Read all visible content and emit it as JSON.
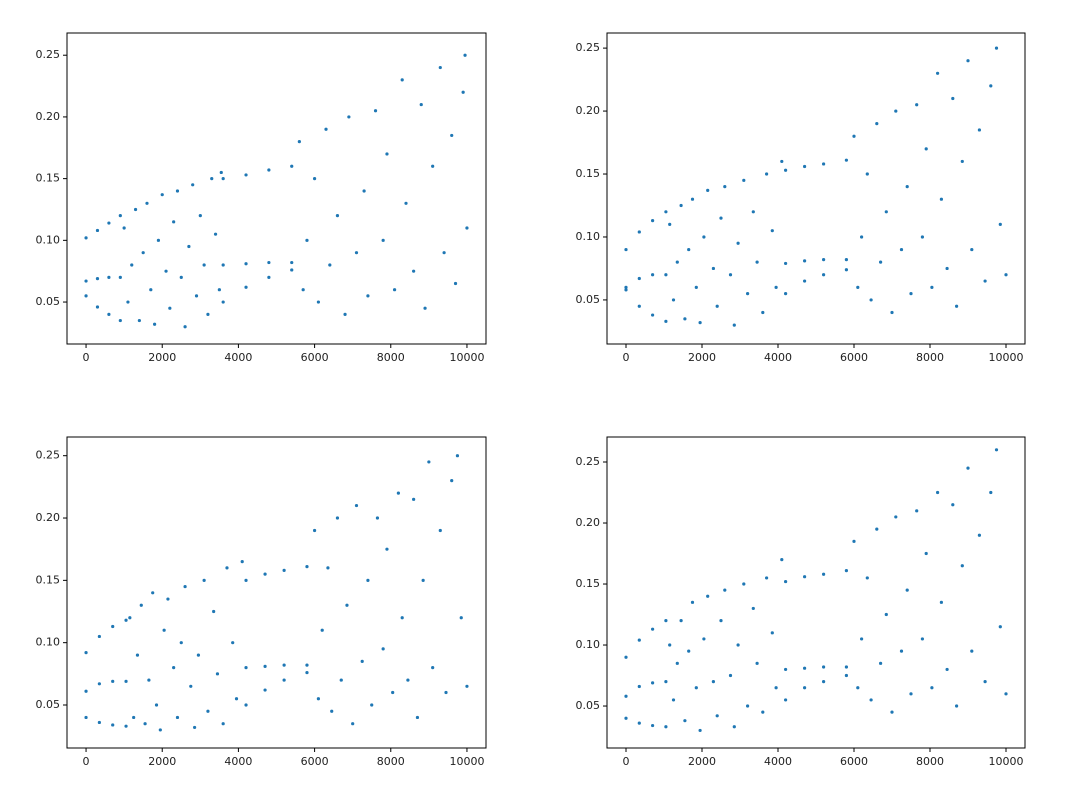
{
  "chart_data": [
    {
      "type": "scatter",
      "color": "#1f77b4",
      "x": [
        0,
        300,
        600,
        900,
        0,
        300,
        600,
        900,
        0,
        300,
        600,
        900,
        1000,
        1100,
        1200,
        1300,
        1400,
        1500,
        1600,
        1700,
        1800,
        1900,
        2000,
        2100,
        2200,
        2300,
        2400,
        2500,
        2600,
        2700,
        2800,
        2900,
        3000,
        3100,
        3200,
        3300,
        3400,
        3500,
        3550,
        3600,
        4200,
        4800,
        5400,
        3600,
        4200,
        4800,
        5400,
        3600,
        4200,
        4800,
        5400,
        5600,
        5700,
        5800,
        6000,
        6100,
        6300,
        6400,
        6600,
        6800,
        6900,
        7100,
        7300,
        7400,
        7600,
        7800,
        7900,
        8100,
        8300,
        8400,
        8600,
        8800,
        8900,
        9100,
        9300,
        9400,
        9600,
        9700,
        9900,
        9950,
        10000
      ],
      "values": [
        0.102,
        0.108,
        0.114,
        0.12,
        0.067,
        0.069,
        0.07,
        0.07,
        0.055,
        0.046,
        0.04,
        0.035,
        0.11,
        0.05,
        0.08,
        0.125,
        0.035,
        0.09,
        0.13,
        0.06,
        0.032,
        0.1,
        0.137,
        0.075,
        0.045,
        0.115,
        0.14,
        0.07,
        0.03,
        0.095,
        0.145,
        0.055,
        0.12,
        0.08,
        0.04,
        0.15,
        0.105,
        0.06,
        0.155,
        0.15,
        0.153,
        0.157,
        0.16,
        0.08,
        0.081,
        0.082,
        0.082,
        0.05,
        0.062,
        0.07,
        0.076,
        0.18,
        0.06,
        0.1,
        0.15,
        0.05,
        0.19,
        0.08,
        0.12,
        0.04,
        0.2,
        0.09,
        0.14,
        0.055,
        0.205,
        0.1,
        0.17,
        0.06,
        0.23,
        0.13,
        0.075,
        0.21,
        0.045,
        0.16,
        0.24,
        0.09,
        0.185,
        0.065,
        0.22,
        0.25,
        0.11
      ],
      "xlim": [
        -500,
        10500
      ],
      "ylim": [
        0.016,
        0.268
      ],
      "xticks": [
        0,
        2000,
        4000,
        6000,
        8000,
        10000
      ],
      "yticks": [
        0.05,
        {
          "value": 0.1,
          "label": "0.10"
        },
        0.15,
        {
          "value": 0.2,
          "label": "0.20"
        },
        0.25
      ]
    },
    {
      "type": "scatter",
      "color": "#1f77b4",
      "x": [
        0,
        350,
        700,
        1050,
        0,
        350,
        700,
        1050,
        0,
        350,
        700,
        1050,
        1150,
        1250,
        1350,
        1450,
        1550,
        1650,
        1750,
        1850,
        1950,
        2050,
        2150,
        2300,
        2400,
        2500,
        2600,
        2750,
        2850,
        2950,
        3100,
        3200,
        3350,
        3450,
        3600,
        3700,
        3850,
        3950,
        4100,
        4200,
        4700,
        5200,
        5800,
        4200,
        4700,
        5200,
        5800,
        4200,
        4700,
        5200,
        5800,
        6000,
        6100,
        6200,
        6350,
        6450,
        6600,
        6700,
        6850,
        7000,
        7100,
        7250,
        7400,
        7500,
        7650,
        7800,
        7900,
        8050,
        8200,
        8300,
        8450,
        8600,
        8700,
        8850,
        9000,
        9100,
        9300,
        9450,
        9600,
        9750,
        9850,
        10000
      ],
      "values": [
        0.09,
        0.104,
        0.113,
        0.12,
        0.06,
        0.067,
        0.07,
        0.07,
        0.058,
        0.045,
        0.038,
        0.033,
        0.11,
        0.05,
        0.08,
        0.125,
        0.035,
        0.09,
        0.13,
        0.06,
        0.032,
        0.1,
        0.137,
        0.075,
        0.045,
        0.115,
        0.14,
        0.07,
        0.03,
        0.095,
        0.145,
        0.055,
        0.12,
        0.08,
        0.04,
        0.15,
        0.105,
        0.06,
        0.16,
        0.153,
        0.156,
        0.158,
        0.161,
        0.079,
        0.081,
        0.082,
        0.082,
        0.055,
        0.065,
        0.07,
        0.074,
        0.18,
        0.06,
        0.1,
        0.15,
        0.05,
        0.19,
        0.08,
        0.12,
        0.04,
        0.2,
        0.09,
        0.14,
        0.055,
        0.205,
        0.1,
        0.17,
        0.06,
        0.23,
        0.13,
        0.075,
        0.21,
        0.045,
        0.16,
        0.24,
        0.09,
        0.185,
        0.065,
        0.22,
        0.25,
        0.11,
        0.07
      ],
      "xlim": [
        -500,
        10500
      ],
      "ylim": [
        0.015,
        0.262
      ],
      "xticks": [
        0,
        2000,
        4000,
        6000,
        8000,
        10000
      ],
      "yticks": [
        0.05,
        {
          "value": 0.1,
          "label": "0.10"
        },
        0.15,
        {
          "value": 0.2,
          "label": "0.20"
        },
        0.25
      ]
    },
    {
      "type": "scatter",
      "color": "#1f77b4",
      "x": [
        0,
        350,
        700,
        1050,
        0,
        350,
        700,
        1050,
        0,
        350,
        700,
        1050,
        1150,
        1250,
        1350,
        1450,
        1550,
        1650,
        1750,
        1850,
        1950,
        2050,
        2150,
        2300,
        2400,
        2500,
        2600,
        2750,
        2850,
        2950,
        3100,
        3200,
        3350,
        3450,
        3600,
        3700,
        3850,
        3950,
        4100,
        4200,
        4700,
        5200,
        5800,
        4200,
        4700,
        5200,
        5800,
        4200,
        4700,
        5200,
        5800,
        6000,
        6100,
        6200,
        6350,
        6450,
        6600,
        6700,
        6850,
        7000,
        7100,
        7250,
        7400,
        7500,
        7650,
        7800,
        7900,
        8050,
        8200,
        8300,
        8450,
        8600,
        8700,
        8850,
        9000,
        9100,
        9300,
        9450,
        9600,
        9750,
        9850,
        10000
      ],
      "values": [
        0.092,
        0.105,
        0.113,
        0.118,
        0.061,
        0.067,
        0.069,
        0.069,
        0.04,
        0.036,
        0.034,
        0.033,
        0.12,
        0.04,
        0.09,
        0.13,
        0.035,
        0.07,
        0.14,
        0.05,
        0.03,
        0.11,
        0.135,
        0.08,
        0.04,
        0.1,
        0.145,
        0.065,
        0.032,
        0.09,
        0.15,
        0.045,
        0.125,
        0.075,
        0.035,
        0.16,
        0.1,
        0.055,
        0.165,
        0.15,
        0.155,
        0.158,
        0.161,
        0.08,
        0.081,
        0.082,
        0.082,
        0.05,
        0.062,
        0.07,
        0.076,
        0.19,
        0.055,
        0.11,
        0.16,
        0.045,
        0.2,
        0.07,
        0.13,
        0.035,
        0.21,
        0.085,
        0.15,
        0.05,
        0.2,
        0.095,
        0.175,
        0.06,
        0.22,
        0.12,
        0.07,
        0.215,
        0.04,
        0.15,
        0.245,
        0.08,
        0.19,
        0.06,
        0.23,
        0.25,
        0.12,
        0.065
      ],
      "xlim": [
        -500,
        10500
      ],
      "ylim": [
        0.0155,
        0.265
      ],
      "xticks": [
        0,
        2000,
        4000,
        6000,
        8000,
        10000
      ],
      "yticks": [
        0.05,
        {
          "value": 0.1,
          "label": "0.10"
        },
        0.15,
        {
          "value": 0.2,
          "label": "0.20"
        },
        0.25
      ]
    },
    {
      "type": "scatter",
      "color": "#1f77b4",
      "x": [
        0,
        350,
        700,
        1050,
        0,
        350,
        700,
        1050,
        0,
        350,
        700,
        1050,
        1150,
        1250,
        1350,
        1450,
        1550,
        1650,
        1750,
        1850,
        1950,
        2050,
        2150,
        2300,
        2400,
        2500,
        2600,
        2750,
        2850,
        2950,
        3100,
        3200,
        3350,
        3450,
        3600,
        3700,
        3850,
        3950,
        4100,
        4200,
        4700,
        5200,
        5800,
        4200,
        4700,
        5200,
        5800,
        4200,
        4700,
        5200,
        5800,
        6000,
        6100,
        6200,
        6350,
        6450,
        6600,
        6700,
        6850,
        7000,
        7100,
        7250,
        7400,
        7500,
        7650,
        7800,
        7900,
        8050,
        8200,
        8300,
        8450,
        8600,
        8700,
        8850,
        9000,
        9100,
        9300,
        9450,
        9600,
        9750,
        9850,
        10000
      ],
      "values": [
        0.09,
        0.104,
        0.113,
        0.12,
        0.058,
        0.066,
        0.069,
        0.07,
        0.04,
        0.036,
        0.034,
        0.033,
        0.1,
        0.055,
        0.085,
        0.12,
        0.038,
        0.095,
        0.135,
        0.065,
        0.03,
        0.105,
        0.14,
        0.07,
        0.042,
        0.12,
        0.145,
        0.075,
        0.033,
        0.1,
        0.15,
        0.05,
        0.13,
        0.085,
        0.045,
        0.155,
        0.11,
        0.065,
        0.17,
        0.152,
        0.156,
        0.158,
        0.161,
        0.08,
        0.081,
        0.082,
        0.082,
        0.055,
        0.065,
        0.07,
        0.075,
        0.185,
        0.065,
        0.105,
        0.155,
        0.055,
        0.195,
        0.085,
        0.125,
        0.045,
        0.205,
        0.095,
        0.145,
        0.06,
        0.21,
        0.105,
        0.175,
        0.065,
        0.225,
        0.135,
        0.08,
        0.215,
        0.05,
        0.165,
        0.245,
        0.095,
        0.19,
        0.07,
        0.225,
        0.26,
        0.115,
        0.06
      ],
      "xlim": [
        -500,
        10500
      ],
      "ylim": [
        0.0156,
        0.2705
      ],
      "xticks": [
        0,
        2000,
        4000,
        6000,
        8000,
        10000
      ],
      "yticks": [
        0.05,
        {
          "value": 0.1,
          "label": "0.10"
        },
        0.15,
        {
          "value": 0.2,
          "label": "0.20"
        },
        0.25
      ]
    }
  ]
}
